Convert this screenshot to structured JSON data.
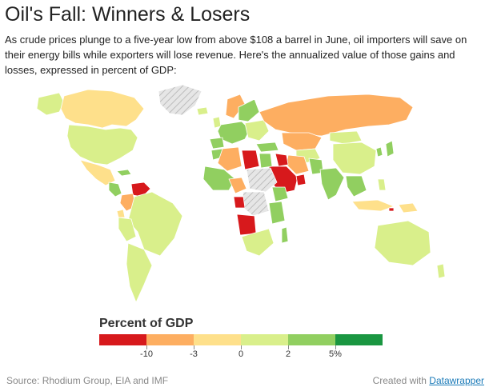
{
  "title": "Oil's Fall: Winners & Losers",
  "description": "As crude prices plunge to a five-year low from above $108 a barrel in June, oil importers will save on their energy bills while exporters will lose revenue. Here's the annualized value of those gains and losses, expressed in percent of GDP:",
  "legend": {
    "title": "Percent of GDP",
    "bins": [
      "#d7191c",
      "#fdae61",
      "#fee08b",
      "#d9ef8b",
      "#91cf60",
      "#1a9641"
    ],
    "ticks": [
      "-10",
      "-3",
      "0",
      "2",
      "5%"
    ],
    "tick_values": [
      -10,
      -3,
      0,
      2,
      5
    ]
  },
  "colors": {
    "no_data": "#d8d8d8",
    "border": "#ffffff"
  },
  "footer": {
    "source": "Source: Rhodium Group, EIA and IMF",
    "created_with": "Created with",
    "link": "Datawrapper"
  }
}
